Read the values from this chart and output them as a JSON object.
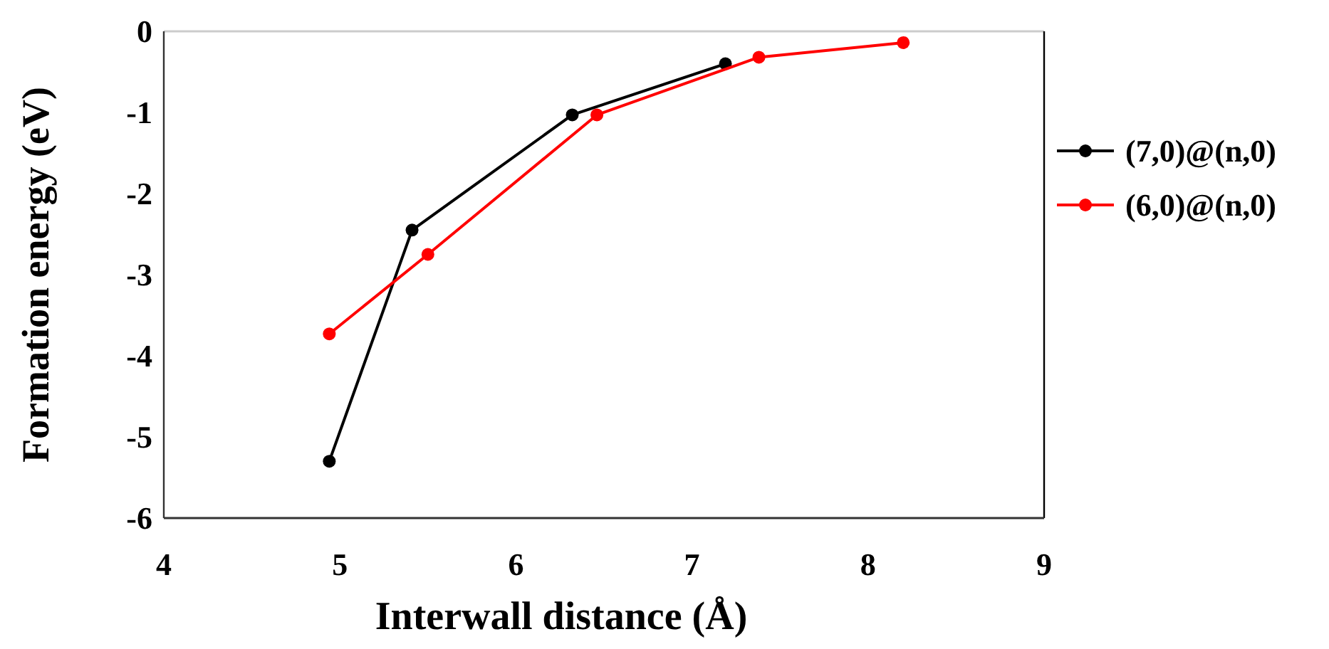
{
  "chart_data": {
    "type": "line",
    "xlabel": "Interwall distance (Å)",
    "ylabel": "Formation energy (eV)",
    "xlim": [
      4,
      9
    ],
    "xticks": [
      4,
      5,
      6,
      7,
      8,
      9
    ],
    "ylim": [
      -6,
      0
    ],
    "yticks": [
      -6,
      -5,
      -4,
      -3,
      -2,
      -1,
      0
    ],
    "grid": false,
    "legend": "right",
    "marker": "circle",
    "line_style": "solid",
    "series": [
      {
        "name": "(7,0)@(n,0)",
        "color": "#000000",
        "x": [
          4.94,
          5.41,
          6.32,
          7.19
        ],
        "values": [
          -5.3,
          -2.45,
          -1.03,
          -0.4
        ]
      },
      {
        "name": "(6,0)@(n,0)",
        "color": "#ff0000",
        "x": [
          4.94,
          5.5,
          6.46,
          7.38,
          8.2
        ],
        "values": [
          -3.73,
          -2.75,
          -1.03,
          -0.32,
          -0.14
        ]
      }
    ]
  }
}
